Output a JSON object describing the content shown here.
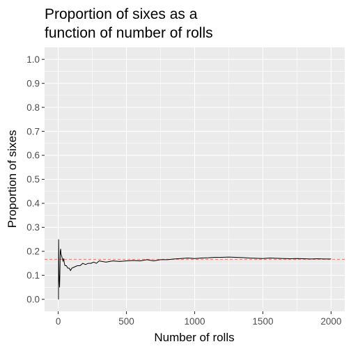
{
  "chart_data": {
    "type": "line",
    "title_lines": [
      "Proportion of sixes as a",
      "function of number of rolls"
    ],
    "xlabel": "Number of rolls",
    "ylabel": "Proportion of sixes",
    "xlim": [
      -100,
      2100
    ],
    "ylim": [
      -0.05,
      1.05
    ],
    "x_ticks": [
      0,
      500,
      1000,
      1500,
      2000
    ],
    "x_tick_labels": [
      "0",
      "500",
      "1000",
      "1500",
      "2000"
    ],
    "y_ticks": [
      0.0,
      0.1,
      0.2,
      0.3,
      0.4,
      0.5,
      0.6,
      0.7,
      0.8,
      0.9,
      1.0
    ],
    "y_tick_labels": [
      "0.0",
      "0.1",
      "0.2",
      "0.3",
      "0.4",
      "0.5",
      "0.6",
      "0.7",
      "0.8",
      "0.9",
      "1.0"
    ],
    "grid": true,
    "reference_line": {
      "y": 0.1667,
      "style": "dashed",
      "color": "#f8766d"
    },
    "colors": {
      "panel": "#ebebeb",
      "grid": "#ffffff",
      "line": "#000000"
    },
    "series": [
      {
        "x": [
          1,
          2,
          3,
          4,
          5,
          6,
          8,
          10,
          12,
          15,
          18,
          20,
          25,
          30,
          35,
          40,
          45,
          50,
          60,
          70,
          80,
          90,
          100,
          120,
          140,
          160,
          180,
          200,
          220,
          240,
          260,
          280,
          300,
          350,
          400,
          450,
          500,
          550,
          600,
          650,
          700,
          750,
          800,
          850,
          900,
          950,
          1000,
          1050,
          1100,
          1150,
          1200,
          1250,
          1300,
          1350,
          1400,
          1450,
          1500,
          1550,
          1600,
          1650,
          1700,
          1750,
          1800,
          1850,
          1900,
          1950,
          2000
        ],
        "y": [
          0.0,
          0.0,
          0.25,
          0.2,
          0.14,
          0.1,
          0.07,
          0.05,
          0.1,
          0.2,
          0.21,
          0.19,
          0.18,
          0.17,
          0.16,
          0.17,
          0.15,
          0.14,
          0.14,
          0.13,
          0.13,
          0.12,
          0.13,
          0.135,
          0.14,
          0.14,
          0.15,
          0.145,
          0.15,
          0.15,
          0.155,
          0.15,
          0.16,
          0.155,
          0.16,
          0.158,
          0.16,
          0.162,
          0.16,
          0.165,
          0.16,
          0.165,
          0.165,
          0.168,
          0.17,
          0.172,
          0.17,
          0.172,
          0.173,
          0.175,
          0.175,
          0.176,
          0.175,
          0.174,
          0.172,
          0.171,
          0.17,
          0.172,
          0.171,
          0.17,
          0.169,
          0.17,
          0.169,
          0.168,
          0.169,
          0.168,
          0.168
        ]
      }
    ]
  }
}
